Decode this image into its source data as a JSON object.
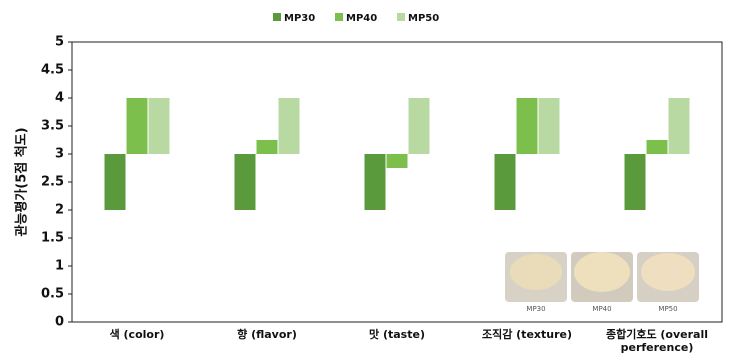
{
  "chart_data": {
    "type": "floating-bar",
    "categories": [
      "색 (color)",
      "향 (flavor)",
      "맛 (taste)",
      "조직감 (texture)",
      "종합기호도 (overall perference)"
    ],
    "y_label": "관능평가(5점 척도)",
    "ylim": [
      0,
      5
    ],
    "yticks": [
      0,
      0.5,
      1,
      1.5,
      2,
      2.5,
      3,
      3.5,
      4,
      4.5,
      5
    ],
    "series": [
      {
        "name": "MP30",
        "color": "#5b9a3c",
        "low": [
          2,
          2,
          2,
          2,
          2
        ],
        "high": [
          3,
          3,
          3,
          3,
          3
        ]
      },
      {
        "name": "MP40",
        "color": "#7dbf4c",
        "low": [
          3,
          3,
          2.75,
          3,
          3
        ],
        "high": [
          4,
          3.25,
          3,
          4,
          3.25
        ]
      },
      {
        "name": "MP50",
        "color": "#b9d9a2",
        "low": [
          3,
          3,
          3,
          3,
          3
        ],
        "high": [
          4,
          4,
          4,
          4,
          4
        ]
      }
    ],
    "inset_labels": [
      "MP30",
      "MP40",
      "MP50"
    ]
  }
}
